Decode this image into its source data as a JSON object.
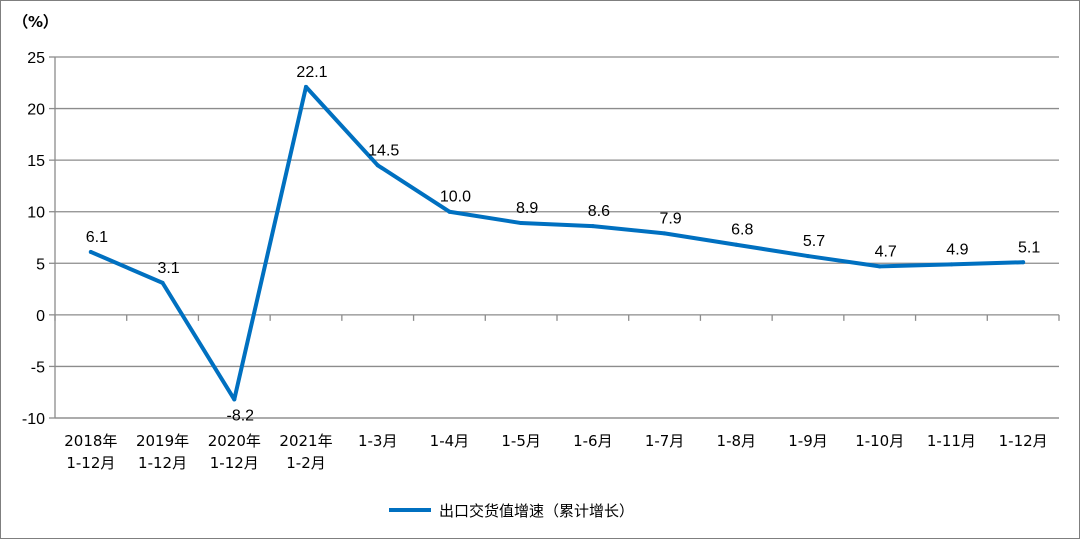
{
  "chart_data": {
    "type": "line",
    "unit_label": "（%）",
    "categories": [
      [
        "2018年",
        "1-12月"
      ],
      [
        "2019年",
        "1-12月"
      ],
      [
        "2020年",
        "1-12月"
      ],
      [
        "2021年",
        "1-2月"
      ],
      [
        "1-3月"
      ],
      [
        "1-4月"
      ],
      [
        "1-5月"
      ],
      [
        "1-6月"
      ],
      [
        "1-7月"
      ],
      [
        "1-8月"
      ],
      [
        "1-9月"
      ],
      [
        "1-10月"
      ],
      [
        "1-11月"
      ],
      [
        "1-12月"
      ]
    ],
    "series": [
      {
        "name": "出口交货值增速（累计增长）",
        "color": "#0070c0",
        "values": [
          6.1,
          3.1,
          -8.2,
          22.1,
          14.5,
          10.0,
          8.9,
          8.6,
          7.9,
          6.8,
          5.7,
          4.7,
          4.9,
          5.1
        ],
        "labels": [
          "6.1",
          "3.1",
          "-8.2",
          "22.1",
          "14.5",
          "10.0",
          "8.9",
          "8.6",
          "7.9",
          "6.8",
          "5.7",
          "4.7",
          "4.9",
          "5.1"
        ]
      }
    ],
    "yticks": [
      "25",
      "20",
      "15",
      "10",
      "5",
      "0",
      "-5",
      "-10"
    ],
    "ylim": [
      -10,
      25
    ],
    "grid": true,
    "legend_position": "bottom-center",
    "gridline_color": "#8c8c8c"
  }
}
